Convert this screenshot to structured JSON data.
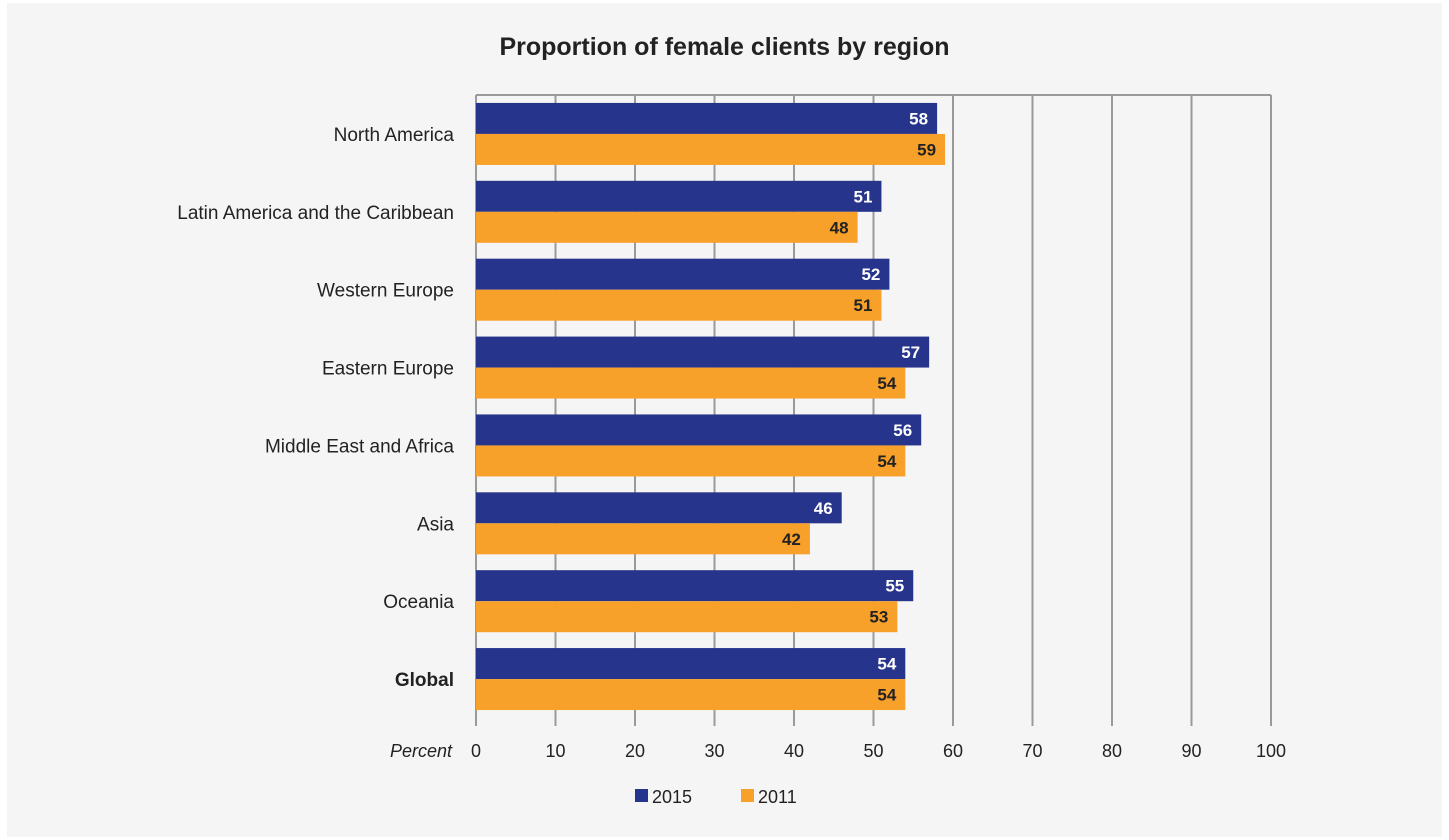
{
  "chart_data": {
    "type": "bar",
    "orientation": "horizontal",
    "title": "Proportion of female clients by region",
    "xlabel": "Percent",
    "ylabel": "",
    "xlim": [
      0,
      100
    ],
    "xticks": [
      0,
      10,
      20,
      30,
      40,
      50,
      60,
      70,
      80,
      90,
      100
    ],
    "grid": "vertical",
    "legend_position": "bottom",
    "categories": [
      "North America",
      "Latin America and the Caribbean",
      "Western Europe",
      "Eastern Europe",
      "Middle East and Africa",
      "Asia",
      "Oceania",
      "Global"
    ],
    "bold_categories": [
      "Global"
    ],
    "series": [
      {
        "name": "2015",
        "color": "#27348b",
        "label_color": "#ffffff",
        "values": [
          58,
          51,
          52,
          57,
          56,
          46,
          55,
          54
        ]
      },
      {
        "name": "2011",
        "color": "#f7a02a",
        "label_color": "#222222",
        "values": [
          59,
          48,
          51,
          54,
          54,
          42,
          53,
          54
        ]
      }
    ]
  }
}
